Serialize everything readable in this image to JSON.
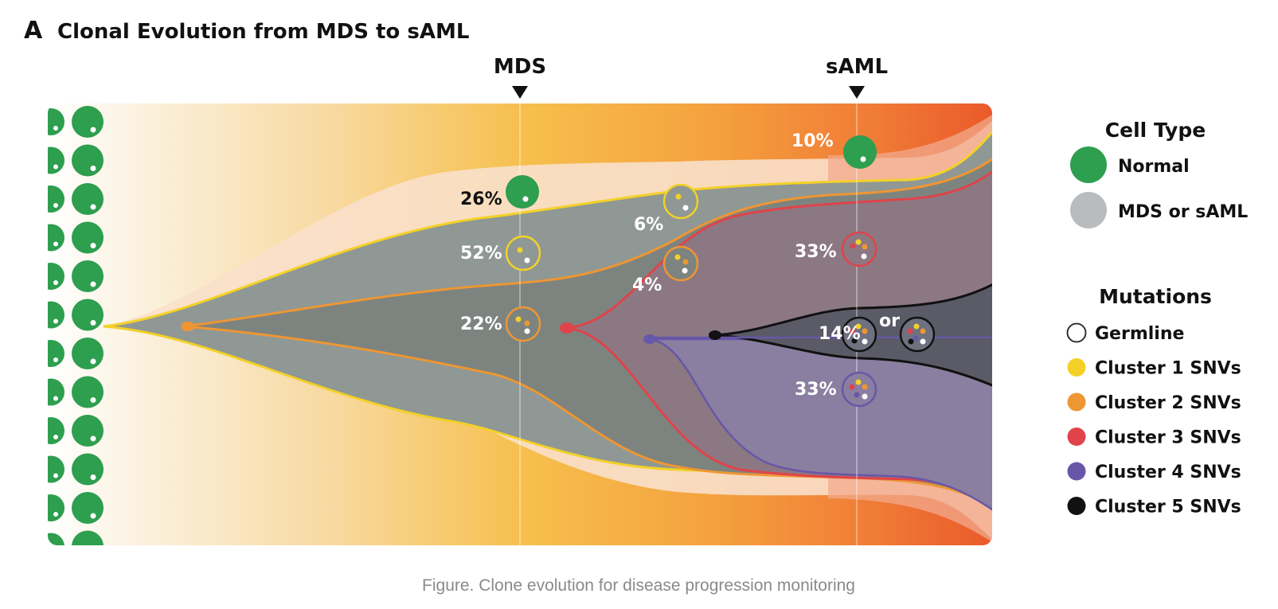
{
  "figure": {
    "panel_letter": "A",
    "title": "Clonal Evolution from MDS to sAML",
    "timepoints": {
      "first": "MDS",
      "second": "sAML"
    },
    "caption": "Figure. Clone evolution for disease progression monitoring"
  },
  "colors": {
    "normal": "#2e9e4f",
    "mds_saml": "#b8bcbe",
    "germline": "#ffffff",
    "cluster1": "#f3d128",
    "cluster2": "#ee9633",
    "cluster3": "#e0434a",
    "cluster4": "#6757a8",
    "cluster5": "#111111"
  },
  "clones": {
    "mds_normal": "26%",
    "mds_c1": "52%",
    "mds_c2": "22%",
    "mid_c1": "6%",
    "mid_c2": "4%",
    "saml_normal": "10%",
    "saml_c3": "33%",
    "saml_c5": "14%",
    "saml_c4": "33%",
    "or_word": "or"
  },
  "legend": {
    "cell_type": {
      "title": "Cell Type",
      "items": [
        {
          "label": "Normal",
          "icon": "normal-cell-icon"
        },
        {
          "label": "MDS or sAML",
          "icon": "mds-cell-icon"
        }
      ]
    },
    "mutations": {
      "title": "Mutations",
      "items": [
        {
          "label": "Germline",
          "icon": "germline-dot-icon"
        },
        {
          "label": "Cluster 1 SNVs",
          "icon": "cluster1-dot-icon"
        },
        {
          "label": "Cluster 2 SNVs",
          "icon": "cluster2-dot-icon"
        },
        {
          "label": "Cluster 3 SNVs",
          "icon": "cluster3-dot-icon"
        },
        {
          "label": "Cluster 4 SNVs",
          "icon": "cluster4-dot-icon"
        },
        {
          "label": "Cluster 5 SNVs",
          "icon": "cluster5-dot-icon"
        }
      ]
    }
  }
}
